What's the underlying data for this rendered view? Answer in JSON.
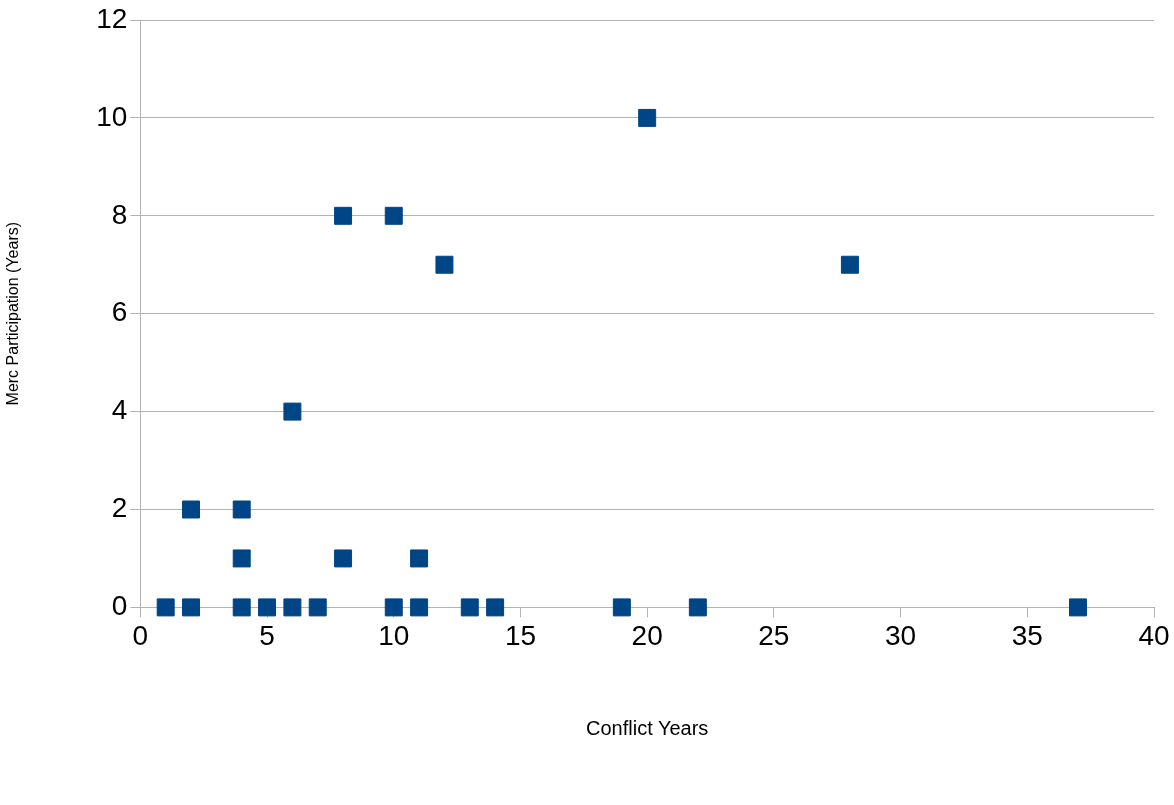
{
  "chart_data": {
    "type": "scatter",
    "xlabel": "Conflict Years",
    "ylabel": "Merc Participation (Years)",
    "x": [
      1,
      2,
      4,
      5,
      6,
      7,
      10,
      11,
      13,
      14,
      19,
      22,
      37,
      4,
      8,
      11,
      2,
      4,
      6,
      8,
      10,
      12,
      28,
      20
    ],
    "values": [
      0,
      0,
      0,
      0,
      0,
      0,
      0,
      0,
      0,
      0,
      0,
      0,
      0,
      1,
      1,
      1,
      2,
      2,
      4,
      8,
      8,
      7,
      7,
      10
    ],
    "color": "#004586",
    "marker": "square",
    "xlim": [
      0,
      40
    ],
    "xticks": [
      0,
      5,
      10,
      15,
      20,
      25,
      30,
      35,
      40
    ],
    "ylim": [
      0,
      12
    ],
    "yticks": [
      0,
      2,
      4,
      6,
      8,
      10,
      12
    ],
    "grid": "y",
    "legend": false
  }
}
